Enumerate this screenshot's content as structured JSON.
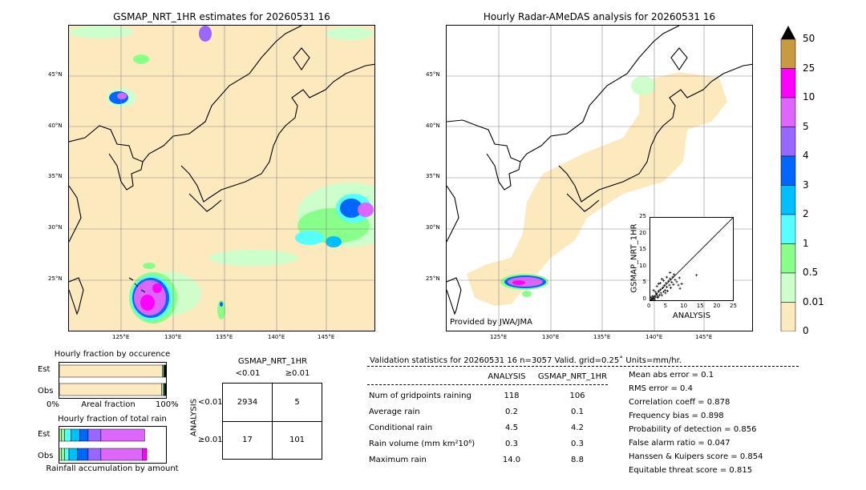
{
  "left_map": {
    "title": "GSMAP_NRT_1HR estimates for 20260531 16",
    "lat_labels": [
      "45°N",
      "40°N",
      "35°N",
      "30°N",
      "25°N"
    ],
    "lon_labels": [
      "125°E",
      "130°E",
      "135°E",
      "140°E",
      "145°E"
    ]
  },
  "right_map": {
    "title": "Hourly Radar-AMeDAS analysis for 20260531 16",
    "lat_labels": [
      "45°N",
      "40°N",
      "35°N",
      "30°N",
      "25°N"
    ],
    "lon_labels": [
      "125°E",
      "130°E",
      "135°E",
      "140°E",
      "145°E"
    ],
    "credit": "Provided by JWA/JMA"
  },
  "colorbar": {
    "labels": [
      "50",
      "25",
      "10",
      "5",
      "4",
      "3",
      "2",
      "1",
      "0.5",
      "0.01",
      "0"
    ],
    "colors": [
      "#c99a3f",
      "#ff00ff",
      "#dd66ff",
      "#9966ff",
      "#0066ff",
      "#00bfff",
      "#55ffff",
      "#88ff88",
      "#ccffcc",
      "#fde9be"
    ],
    "over_color": "#000000"
  },
  "chart_data": [
    {
      "type": "scatter",
      "title": "",
      "xlabel": "ANALYSIS",
      "ylabel": "GSMAP_NRT_1HR",
      "xlim": [
        0,
        25
      ],
      "ylim": [
        0,
        25
      ],
      "xticks": [
        "0",
        "5",
        "10",
        "15",
        "20",
        "25"
      ],
      "yticks": [
        "0",
        "5",
        "10",
        "15",
        "20",
        "25"
      ],
      "points": [
        [
          0.3,
          0.2
        ],
        [
          0.5,
          0.4
        ],
        [
          0.8,
          0.3
        ],
        [
          1.0,
          1.2
        ],
        [
          1.2,
          0.6
        ],
        [
          1.5,
          1.0
        ],
        [
          1.8,
          2.0
        ],
        [
          2.0,
          1.5
        ],
        [
          2.2,
          0.8
        ],
        [
          2.5,
          2.8
        ],
        [
          2.8,
          1.6
        ],
        [
          3.0,
          3.2
        ],
        [
          3.2,
          2.2
        ],
        [
          3.5,
          1.5
        ],
        [
          3.8,
          3.8
        ],
        [
          4.0,
          2.6
        ],
        [
          4.2,
          4.5
        ],
        [
          4.5,
          3.0
        ],
        [
          4.8,
          5.2
        ],
        [
          5.0,
          4.0
        ],
        [
          5.2,
          2.8
        ],
        [
          5.5,
          5.8
        ],
        [
          5.8,
          4.6
        ],
        [
          6.0,
          6.5
        ],
        [
          6.2,
          3.8
        ],
        [
          6.5,
          5.5
        ],
        [
          6.8,
          7.0
        ],
        [
          7.0,
          4.8
        ],
        [
          7.5,
          6.2
        ],
        [
          8.0,
          5.6
        ],
        [
          8.5,
          4.6
        ],
        [
          9.0,
          3.6
        ],
        [
          9.5,
          5.0
        ],
        [
          1.0,
          3.0
        ],
        [
          2.0,
          4.2
        ],
        [
          3.0,
          5.2
        ],
        [
          4.0,
          6.0
        ],
        [
          5.0,
          7.0
        ],
        [
          6.0,
          8.4
        ],
        [
          3.5,
          6.4
        ],
        [
          2.5,
          5.0
        ],
        [
          1.5,
          2.5
        ],
        [
          0.6,
          1.2
        ],
        [
          14.0,
          7.6
        ],
        [
          0.2,
          0.9
        ],
        [
          1.3,
          0.2
        ],
        [
          2.4,
          1.0
        ],
        [
          4.6,
          2.2
        ],
        [
          7.2,
          7.8
        ],
        [
          8.8,
          6.8
        ]
      ]
    },
    {
      "type": "bar",
      "title": "Hourly fraction by occurence",
      "categories": [
        "Est",
        "Obs"
      ],
      "xlabel": "Areal fraction",
      "xtick_labels": [
        "0%",
        "100%"
      ],
      "series": [
        {
          "color": "#fde9be",
          "values": [
            0.965,
            0.96
          ]
        },
        {
          "color": "#ccffcc",
          "values": [
            0.012,
            0.015
          ]
        },
        {
          "color": "#88ff88",
          "values": [
            0.006,
            0.008
          ]
        },
        {
          "color": "#55ffff",
          "values": [
            0.004,
            0.004
          ]
        },
        {
          "color": "#00bfff",
          "values": [
            0.003,
            0.003
          ]
        },
        {
          "color": "#0066ff",
          "values": [
            0.003,
            0.003
          ]
        },
        {
          "color": "#9966ff",
          "values": [
            0.003,
            0.003
          ]
        },
        {
          "color": "#dd66ff",
          "values": [
            0.003,
            0.003
          ]
        },
        {
          "color": "#ff00ff",
          "values": [
            0.0,
            0.002
          ]
        }
      ]
    },
    {
      "type": "bar",
      "title": "Hourly fraction of total rain",
      "categories": [
        "Est",
        "Obs"
      ],
      "xlabel": "Rainfall accumulation by amount",
      "series": [
        {
          "color": "#ccffcc",
          "values": [
            0.02,
            0.02
          ]
        },
        {
          "color": "#88ff88",
          "values": [
            0.03,
            0.03
          ]
        },
        {
          "color": "#55ffff",
          "values": [
            0.06,
            0.04
          ]
        },
        {
          "color": "#00bfff",
          "values": [
            0.08,
            0.08
          ]
        },
        {
          "color": "#0066ff",
          "values": [
            0.08,
            0.1
          ]
        },
        {
          "color": "#9966ff",
          "values": [
            0.12,
            0.12
          ]
        },
        {
          "color": "#dd66ff",
          "values": [
            0.41,
            0.39
          ]
        },
        {
          "color": "#ff00ff",
          "values": [
            0.0,
            0.04
          ]
        }
      ]
    },
    {
      "type": "table",
      "title": "GSMAP_NRT_1HR",
      "col_headers": [
        "<0.01",
        "≥0.01"
      ],
      "row_axis_label": "ANALYSIS",
      "row_headers": [
        "<0.01",
        "≥0.01"
      ],
      "cells": [
        [
          "2934",
          "5"
        ],
        [
          "17",
          "101"
        ]
      ]
    }
  ],
  "validation": {
    "header": "Validation statistics for 20260531 16  n=3057 Valid. grid=0.25˚ Units=mm/hr.",
    "col_analysis": "ANALYSIS",
    "col_gsmap": "GSMAP_NRT_1HR",
    "rows": [
      {
        "label": "Num of gridpoints raining",
        "analysis": "118",
        "gsmap": "106"
      },
      {
        "label": "Average rain",
        "analysis": "0.2",
        "gsmap": "0.1"
      },
      {
        "label": "Conditional rain",
        "analysis": "4.5",
        "gsmap": "4.2"
      },
      {
        "label": "Rain volume (mm km²10⁶)",
        "analysis": "0.3",
        "gsmap": "0.3"
      },
      {
        "label": "Maximum rain",
        "analysis": "14.0",
        "gsmap": "8.8"
      }
    ],
    "scores": [
      "Mean abs error =    0.1",
      "RMS error =    0.4",
      "Correlation coeff =  0.878",
      "Frequency bias =  0.898",
      "Probability of detection =  0.856",
      "False alarm ratio =  0.047",
      "Hanssen & Kuipers score =  0.854",
      "Equitable threat score =  0.815"
    ]
  }
}
